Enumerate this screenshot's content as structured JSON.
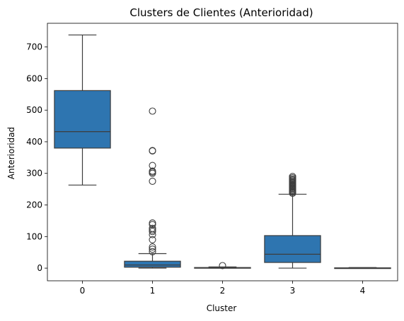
{
  "chart_data": {
    "type": "box",
    "title": "Clusters de Clientes (Anterioridad)",
    "xlabel": "Cluster",
    "ylabel": "Anterioridad",
    "categories": [
      "0",
      "1",
      "2",
      "3",
      "4"
    ],
    "y_ticks": [
      0,
      100,
      200,
      300,
      400,
      500,
      600,
      700
    ],
    "ylim": [
      -40,
      775
    ],
    "grid": false,
    "box_color": "#2e75b0",
    "line_color": "#3d3d3d",
    "boxes": [
      {
        "category": "0",
        "whisker_low": 263,
        "q1": 380,
        "median": 432,
        "q3": 562,
        "whisker_high": 738,
        "outliers": []
      },
      {
        "category": "1",
        "whisker_low": 0,
        "q1": 3,
        "median": 10,
        "q3": 22,
        "whisker_high": 46,
        "outliers": [
          497,
          372,
          371,
          325,
          307,
          304,
          300,
          275,
          143,
          138,
          126,
          121,
          116,
          106,
          90,
          67,
          60,
          52
        ]
      },
      {
        "category": "2",
        "whisker_low": 0,
        "q1": 0,
        "median": 1,
        "q3": 2,
        "whisker_high": 4,
        "outliers": [
          8
        ]
      },
      {
        "category": "3",
        "whisker_low": 0,
        "q1": 18,
        "median": 44,
        "q3": 103,
        "whisker_high": 234,
        "outliers": [
          237,
          240,
          243,
          246,
          249,
          252,
          255,
          258,
          261,
          264,
          267,
          270,
          273,
          276,
          279,
          282,
          286,
          290
        ]
      },
      {
        "category": "4",
        "whisker_low": 0,
        "q1": 0,
        "median": 0,
        "q3": 1,
        "whisker_high": 2,
        "outliers": []
      }
    ]
  }
}
